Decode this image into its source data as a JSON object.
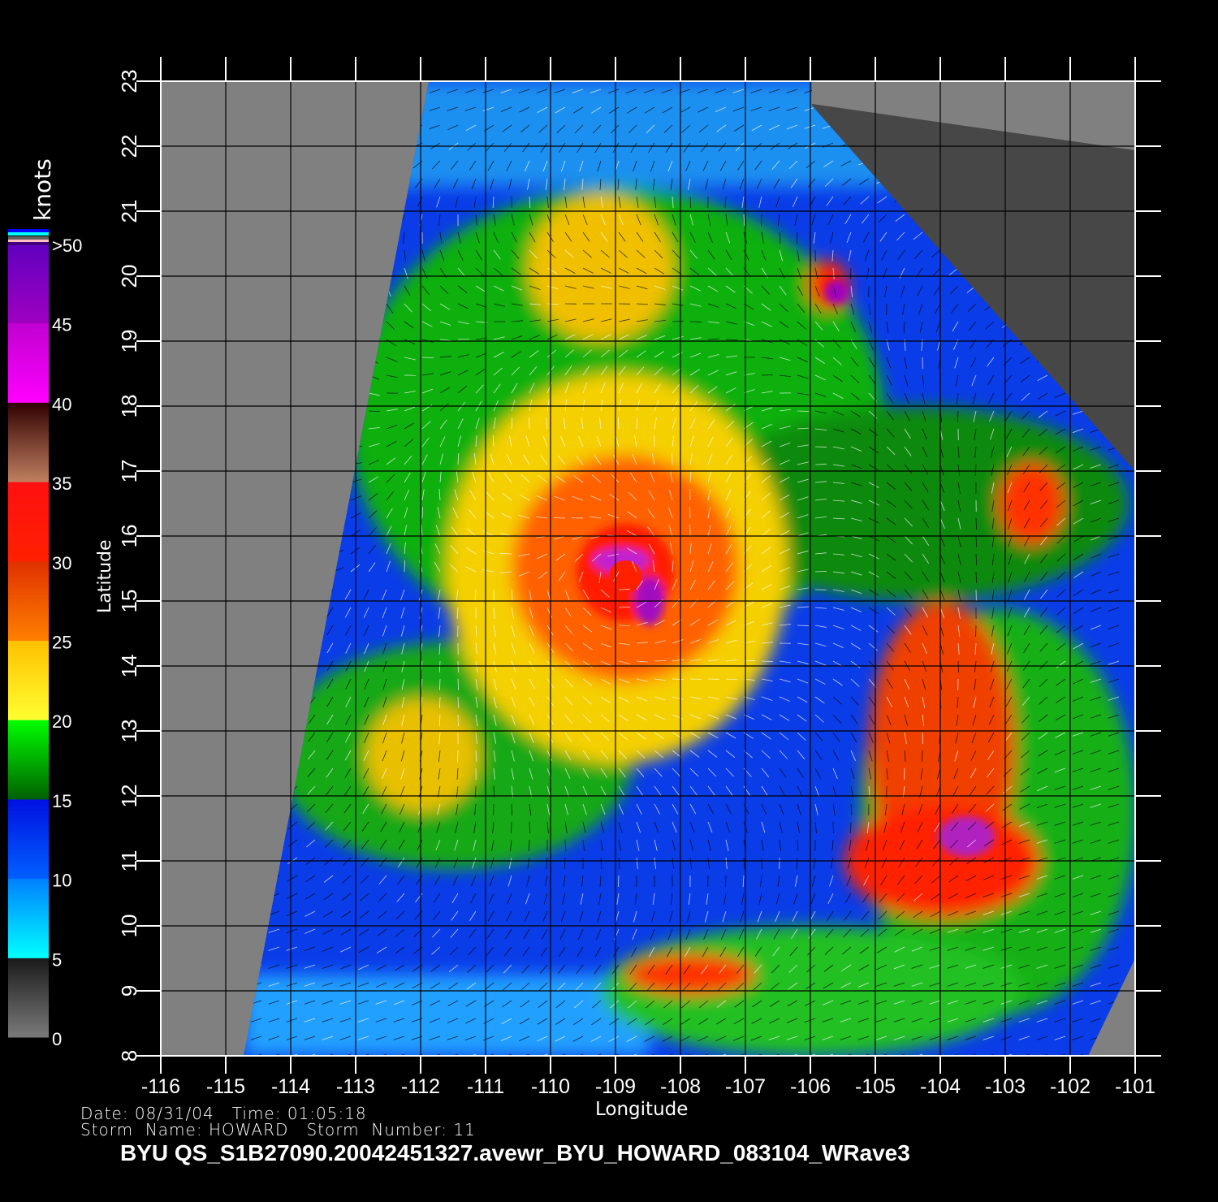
{
  "colorbar": {
    "unit": "knots",
    "labels": [
      ">50",
      "45",
      "40",
      "35",
      "30",
      "25",
      "20",
      "15",
      "10",
      "5",
      "0"
    ],
    "stops": [
      {
        "knots": 0,
        "color": "#7a7a7a"
      },
      {
        "knots": 5,
        "color": "#1a1a1a"
      },
      {
        "knots": 5,
        "color": "#00ffff"
      },
      {
        "knots": 10,
        "color": "#0080ff"
      },
      {
        "knots": 10,
        "color": "#0060ff"
      },
      {
        "knots": 15,
        "color": "#0010e0"
      },
      {
        "knots": 15,
        "color": "#006000"
      },
      {
        "knots": 20,
        "color": "#00ff00"
      },
      {
        "knots": 20,
        "color": "#ffff30"
      },
      {
        "knots": 25,
        "color": "#ffc000"
      },
      {
        "knots": 25,
        "color": "#ff8000"
      },
      {
        "knots": 30,
        "color": "#e03000"
      },
      {
        "knots": 30,
        "color": "#ff2000"
      },
      {
        "knots": 35,
        "color": "#ff1010"
      },
      {
        "knots": 35,
        "color": "#c08060"
      },
      {
        "knots": 40,
        "color": "#300000"
      },
      {
        "knots": 40,
        "color": "#ff00ff"
      },
      {
        "knots": 45,
        "color": "#c000d0"
      },
      {
        "knots": 45,
        "color": "#a000c0"
      },
      {
        "knots": 50,
        "color": "#6000c0"
      }
    ]
  },
  "axes": {
    "xlabel": "Longitude",
    "ylabel": "Latitude",
    "x_ticks": [
      "-116",
      "-115",
      "-114",
      "-113",
      "-112",
      "-111",
      "-110",
      "-109",
      "-108",
      "-107",
      "-106",
      "-105",
      "-104",
      "-103",
      "-102",
      "-101"
    ],
    "y_ticks": [
      "8",
      "9",
      "10",
      "11",
      "12",
      "13",
      "14",
      "15",
      "16",
      "17",
      "18",
      "19",
      "20",
      "21",
      "22",
      "23"
    ],
    "xlim": [
      -116,
      -101
    ],
    "ylim": [
      8,
      23
    ]
  },
  "storm": {
    "center_lon": -108.9,
    "center_lat": 15.4
  },
  "info": {
    "date_line": "Date: 08/31/04   Time: 01:05:18",
    "storm_line": "Storm  Name: HOWARD   Storm  Number: 11"
  },
  "title": "BYU  QS_S1B27090.20042451327.avewr_BYU_HOWARD_083104_WRave3"
}
